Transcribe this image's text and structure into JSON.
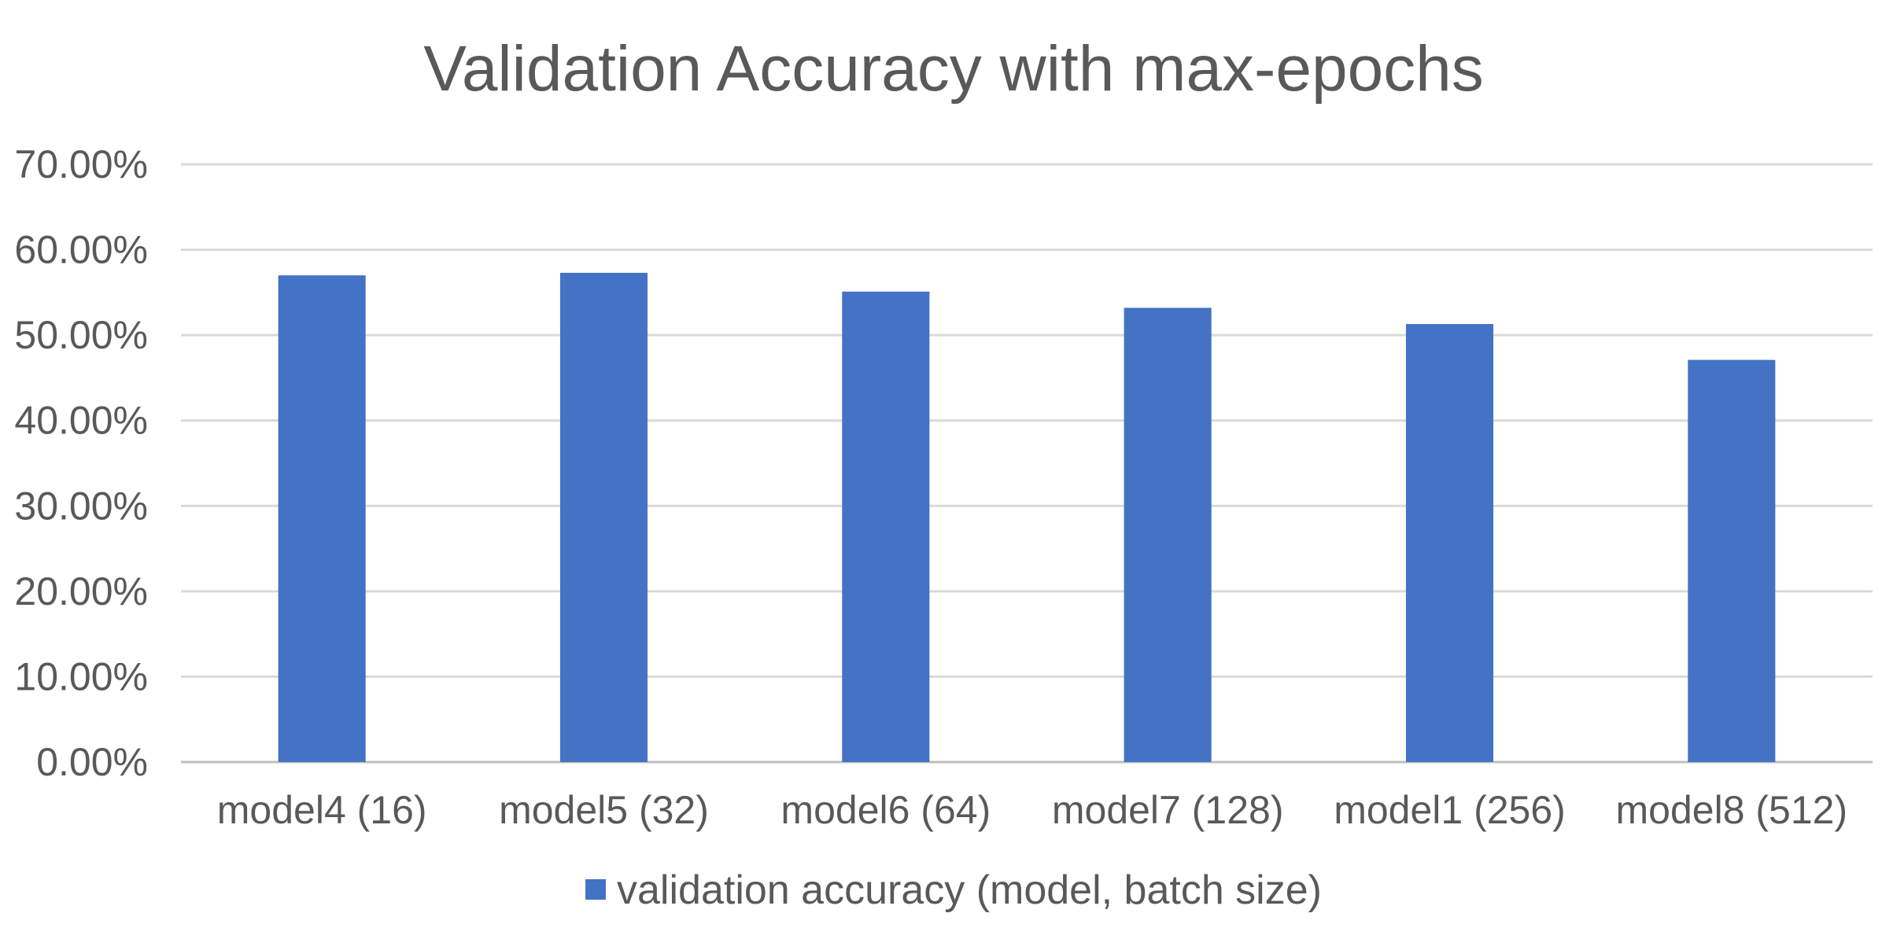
{
  "chart_data": {
    "type": "bar",
    "title": "Validation Accuracy with max-epochs",
    "categories": [
      "model4 (16)",
      "model5 (32)",
      "model6 (64)",
      "model7 (128)",
      "model1 (256)",
      "model8 (512)"
    ],
    "series": [
      {
        "name": "validation accuracy (model, batch size)",
        "values": [
          0.57,
          0.573,
          0.551,
          0.532,
          0.513,
          0.471
        ],
        "color": "#4472C4"
      }
    ],
    "xlabel": "",
    "ylabel": "",
    "ylim": [
      0,
      0.7
    ],
    "yticks": [
      "0.00%",
      "10.00%",
      "20.00%",
      "30.00%",
      "40.00%",
      "50.00%",
      "60.00%",
      "70.00%"
    ],
    "grid": true,
    "legend": "bottom"
  }
}
